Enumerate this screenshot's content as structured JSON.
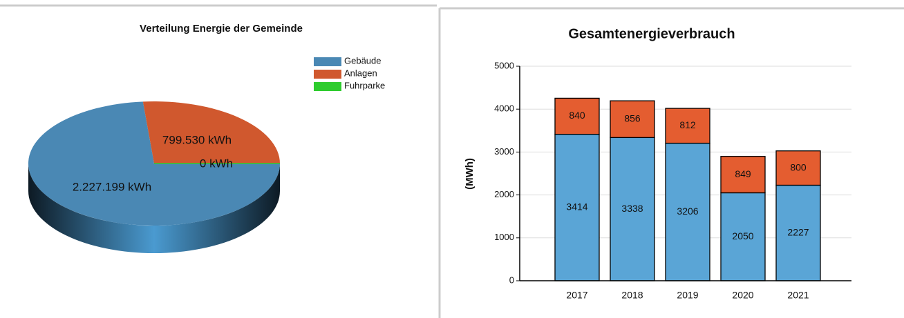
{
  "chart_data": [
    {
      "type": "pie",
      "title": "Verteilung Energie der Gemeinde",
      "categories": [
        "Gebäude",
        "Anlagen",
        "Fuhrparke"
      ],
      "values": [
        2227199,
        799530,
        0
      ],
      "value_labels": [
        "2.227.199 kWh",
        "799.530 kWh",
        "0 kWh"
      ],
      "colors": [
        "#4a88b4",
        "#d0582e",
        "#2ecc2e"
      ],
      "legend": "top-right"
    },
    {
      "type": "stacked_bar",
      "title": "Gesamtenergieverbrauch",
      "ylabel": "(MWh)",
      "categories": [
        "2017",
        "2018",
        "2019",
        "2020",
        "2021"
      ],
      "series": [
        {
          "color": "#5aa5d6",
          "values": [
            3414,
            3338,
            3206,
            2050,
            2227
          ]
        },
        {
          "color": "#e45d30",
          "values": [
            840,
            856,
            812,
            849,
            800
          ]
        }
      ],
      "ylim": [
        0,
        5000
      ],
      "yticks": [
        0,
        1000,
        2000,
        3000,
        4000,
        5000
      ],
      "grid": true
    }
  ]
}
